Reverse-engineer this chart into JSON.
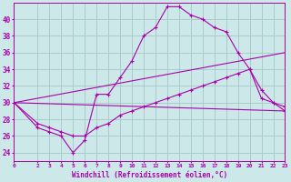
{
  "background_color": "#cce8e8",
  "grid_color": "#aacccc",
  "line_color": "#aa00aa",
  "xlabel": "Windchill (Refroidissement éolien,°C)",
  "xlim": [
    0,
    23
  ],
  "ylim": [
    23,
    42
  ],
  "yticks": [
    24,
    26,
    28,
    30,
    32,
    34,
    36,
    38,
    40
  ],
  "xticks": [
    0,
    2,
    3,
    4,
    5,
    6,
    7,
    8,
    9,
    10,
    11,
    12,
    13,
    14,
    15,
    16,
    17,
    18,
    19,
    20,
    21,
    22,
    23
  ],
  "lines": [
    {
      "x": [
        0,
        2,
        3,
        4,
        5,
        6,
        7,
        8,
        9,
        10,
        11,
        12,
        13,
        14,
        15,
        16,
        17,
        18,
        19,
        20,
        21,
        22,
        23
      ],
      "y": [
        30,
        27,
        26.5,
        26,
        24,
        25.5,
        31,
        31,
        33,
        35,
        38,
        39,
        41.5,
        41.5,
        40.5,
        40,
        39,
        38.5,
        36,
        34,
        31.5,
        30,
        29.5
      ],
      "has_markers": true
    },
    {
      "x": [
        0,
        2,
        3,
        4,
        5,
        6,
        7,
        8,
        9,
        10,
        11,
        12,
        13,
        14,
        15,
        16,
        17,
        18,
        19,
        20,
        21,
        22,
        23
      ],
      "y": [
        30,
        27.5,
        27,
        26.5,
        26,
        26,
        27,
        27.5,
        28.5,
        29,
        29.5,
        30,
        30.5,
        31,
        31.5,
        32,
        32.5,
        33,
        33.5,
        34,
        30.5,
        30,
        29
      ],
      "has_markers": true
    },
    {
      "x": [
        0,
        23
      ],
      "y": [
        30,
        36
      ],
      "has_markers": false
    },
    {
      "x": [
        0,
        23
      ],
      "y": [
        30,
        29
      ],
      "has_markers": false
    }
  ]
}
